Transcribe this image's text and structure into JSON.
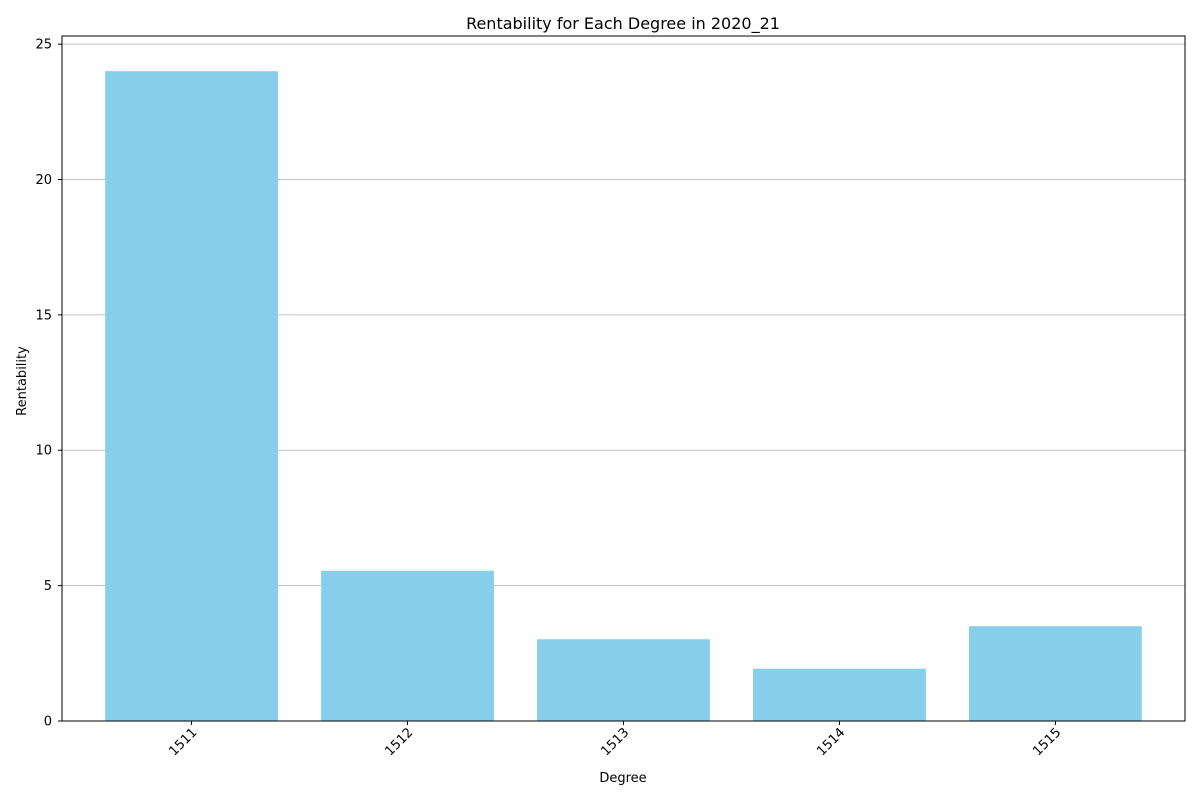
{
  "chart_data": {
    "type": "bar",
    "title": "Rentability for Each Degree in 2020_21",
    "xlabel": "Degree",
    "ylabel": "Rentability",
    "categories": [
      "1511",
      "1512",
      "1513",
      "1514",
      "1515"
    ],
    "values": [
      24.0,
      5.55,
      3.02,
      1.93,
      3.5
    ],
    "ylim": [
      0,
      25.3
    ],
    "yticks": [
      0,
      5,
      10,
      15,
      20,
      25
    ],
    "grid": "y-axis",
    "x_tick_rotation": 45,
    "legend": "none",
    "colors": {
      "bar": "#87CEEB",
      "grid": "#b0b0b0",
      "axis": "#000000"
    }
  }
}
